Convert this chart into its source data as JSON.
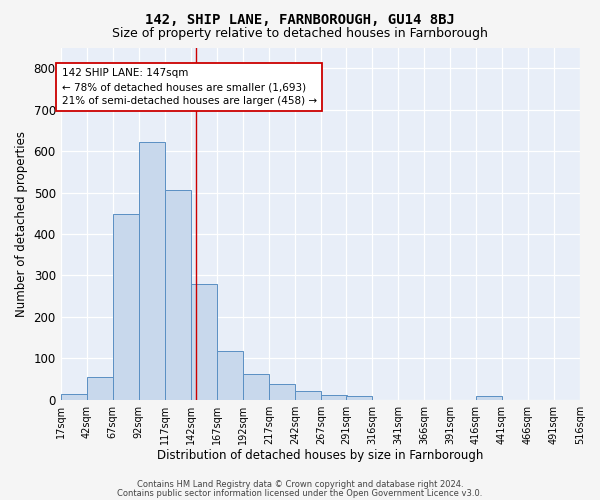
{
  "title": "142, SHIP LANE, FARNBOROUGH, GU14 8BJ",
  "subtitle": "Size of property relative to detached houses in Farnborough",
  "xlabel": "Distribution of detached houses by size in Farnborough",
  "ylabel": "Number of detached properties",
  "bar_color": "#c8d8ec",
  "bar_edge_color": "#5a8fc3",
  "property_value": 147,
  "property_line_color": "#cc0000",
  "annotation_line1": "142 SHIP LANE: 147sqm",
  "annotation_line2": "← 78% of detached houses are smaller (1,693)",
  "annotation_line3": "21% of semi-detached houses are larger (458) →",
  "annotation_box_color": "#ffffff",
  "annotation_box_edge": "#cc0000",
  "bin_edges": [
    17,
    42,
    67,
    92,
    117,
    142,
    167,
    192,
    217,
    242,
    267,
    291,
    316,
    341,
    366,
    391,
    416,
    441,
    466,
    491,
    516
  ],
  "bin_heights": [
    13,
    55,
    448,
    621,
    505,
    280,
    118,
    63,
    37,
    22,
    11,
    8,
    0,
    0,
    0,
    0,
    8,
    0,
    0,
    0
  ],
  "ylim": [
    0,
    850
  ],
  "yticks": [
    0,
    100,
    200,
    300,
    400,
    500,
    600,
    700,
    800
  ],
  "background_color": "#e8eef8",
  "grid_color": "#ffffff",
  "fig_background": "#f5f5f5",
  "footer1": "Contains HM Land Registry data © Crown copyright and database right 2024.",
  "footer2": "Contains public sector information licensed under the Open Government Licence v3.0.",
  "title_fontsize": 10,
  "subtitle_fontsize": 9,
  "ylabel_fontsize": 8.5,
  "xlabel_fontsize": 8.5,
  "tick_label_fontsize": 7,
  "annotation_fontsize": 7.5,
  "footer_fontsize": 6
}
